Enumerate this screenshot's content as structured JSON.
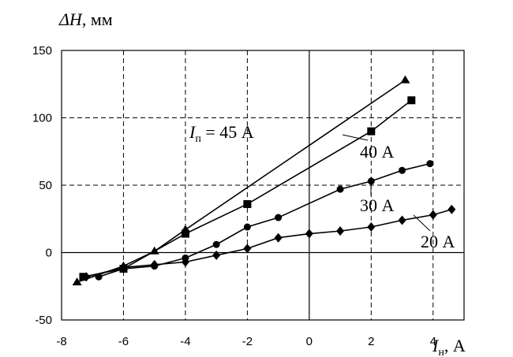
{
  "chart_data": {
    "type": "line",
    "title": "",
    "xlabel": {
      "symbol": "I",
      "sub": "н",
      "unit": ", А"
    },
    "ylabel": {
      "symbol": "ΔH",
      "unit": ", мм"
    },
    "xlim": [
      -8,
      5
    ],
    "ylim": [
      -50,
      150
    ],
    "xticks": [
      -8,
      -6,
      -4,
      -2,
      0,
      2,
      4
    ],
    "yticks": [
      -50,
      0,
      50,
      100,
      150
    ],
    "x_gridlines": [
      -6,
      -4,
      -2,
      2,
      4
    ],
    "y_gridlines": [
      50,
      100
    ],
    "grid": true,
    "series": [
      {
        "name": {
          "prefix": "I",
          "sub": "п",
          "text": " = 45 А"
        },
        "marker": "triangle",
        "points": [
          [
            -7.5,
            -22
          ],
          [
            -6,
            -10
          ],
          [
            -5,
            1
          ],
          [
            -4,
            17
          ],
          [
            3.1,
            128
          ]
        ]
      },
      {
        "name": {
          "prefix": "",
          "sub": "",
          "text": "40 А"
        },
        "marker": "square",
        "points": [
          [
            -7.3,
            -18
          ],
          [
            -6,
            -12
          ],
          [
            -4,
            14
          ],
          [
            -2,
            36
          ],
          [
            2,
            90
          ],
          [
            3.3,
            113
          ]
        ]
      },
      {
        "name": {
          "prefix": "",
          "sub": "",
          "text": "30 А"
        },
        "marker": "circle",
        "points": [
          [
            -6.8,
            -18
          ],
          [
            -6,
            -12
          ],
          [
            -5,
            -10
          ],
          [
            -4,
            -4
          ],
          [
            -3,
            6
          ],
          [
            -2,
            19
          ],
          [
            -1,
            26
          ],
          [
            1,
            47
          ],
          [
            2,
            53
          ],
          [
            3,
            61
          ],
          [
            3.9,
            66
          ]
        ]
      },
      {
        "name": {
          "prefix": "",
          "sub": "",
          "text": "20 А"
        },
        "marker": "diamond",
        "points": [
          [
            -7.2,
            -18
          ],
          [
            -6,
            -11
          ],
          [
            -5,
            -9
          ],
          [
            -4,
            -7
          ],
          [
            -3,
            -2
          ],
          [
            -2,
            3
          ],
          [
            -1,
            11
          ],
          [
            0,
            14
          ],
          [
            1,
            16
          ],
          [
            2,
            19
          ],
          [
            3,
            24
          ],
          [
            4,
            28
          ],
          [
            4.6,
            32
          ]
        ]
      }
    ]
  }
}
